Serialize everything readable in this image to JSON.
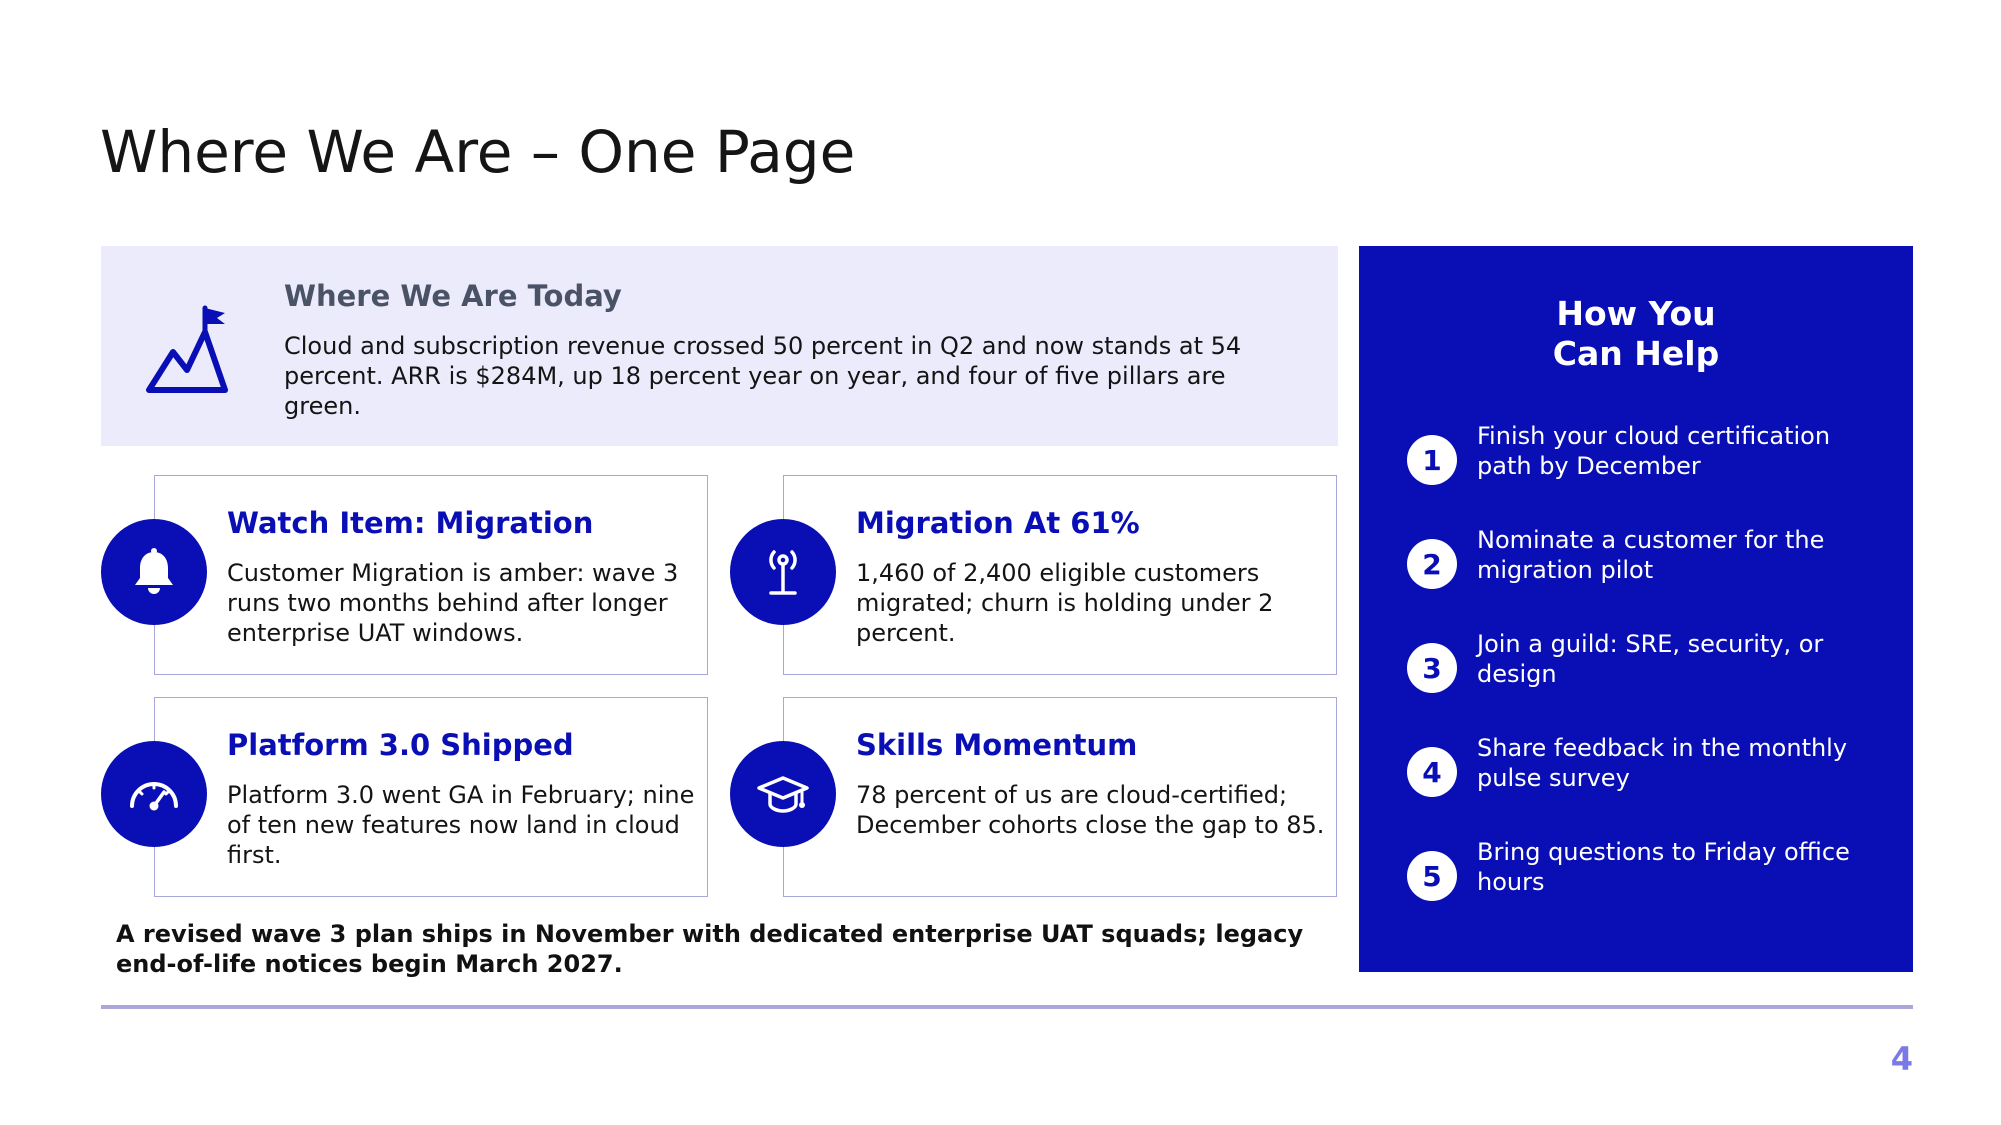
{
  "slide": {
    "title": "Where We Are – One Page",
    "page_number": "4"
  },
  "today": {
    "icon": "mountain-flag-icon",
    "heading": "Where We Are Today",
    "body": "Cloud and subscription revenue crossed 50 percent in Q2 and now stands at 54 percent. ARR is $284M, up 18 percent year on year, and four of five pillars are green."
  },
  "cards": [
    {
      "icon": "bell-icon",
      "title": "Watch Item: Migration",
      "body": "Customer Migration is amber: wave 3 runs two months behind after longer enterprise UAT windows."
    },
    {
      "icon": "antenna-icon",
      "title": "Migration At 61%",
      "body": "1,460 of 2,400 eligible customers migrated; churn is holding under 2 percent."
    },
    {
      "icon": "gauge-icon",
      "title": "Platform 3.0 Shipped",
      "body": "Platform 3.0 went GA in February; nine of ten new features now land in cloud first."
    },
    {
      "icon": "graduation-cap-icon",
      "title": "Skills Momentum",
      "body": "78 percent of us are cloud-certified; December cohorts close the gap to 85."
    }
  ],
  "footnote": "A revised wave 3 plan ships in November with dedicated enterprise UAT squads; legacy end-of-life notices begin March 2027.",
  "help": {
    "title_line1": "How You",
    "title_line2": "Can Help",
    "items": [
      {
        "num": "1",
        "text": "Finish your cloud certification path by December"
      },
      {
        "num": "2",
        "text": "Nominate a customer for the migration pilot"
      },
      {
        "num": "3",
        "text": "Join a guild: SRE, security, or design"
      },
      {
        "num": "4",
        "text": "Share feedback in the monthly pulse survey"
      },
      {
        "num": "5",
        "text": "Bring questions to Friday office hours"
      }
    ]
  },
  "colors": {
    "accent": "#0a0fb5",
    "panel_bg": "#ebebfc",
    "card_border": "#a7a7d9",
    "divider": "#a9a7dc",
    "page_number": "#7b79e6"
  }
}
